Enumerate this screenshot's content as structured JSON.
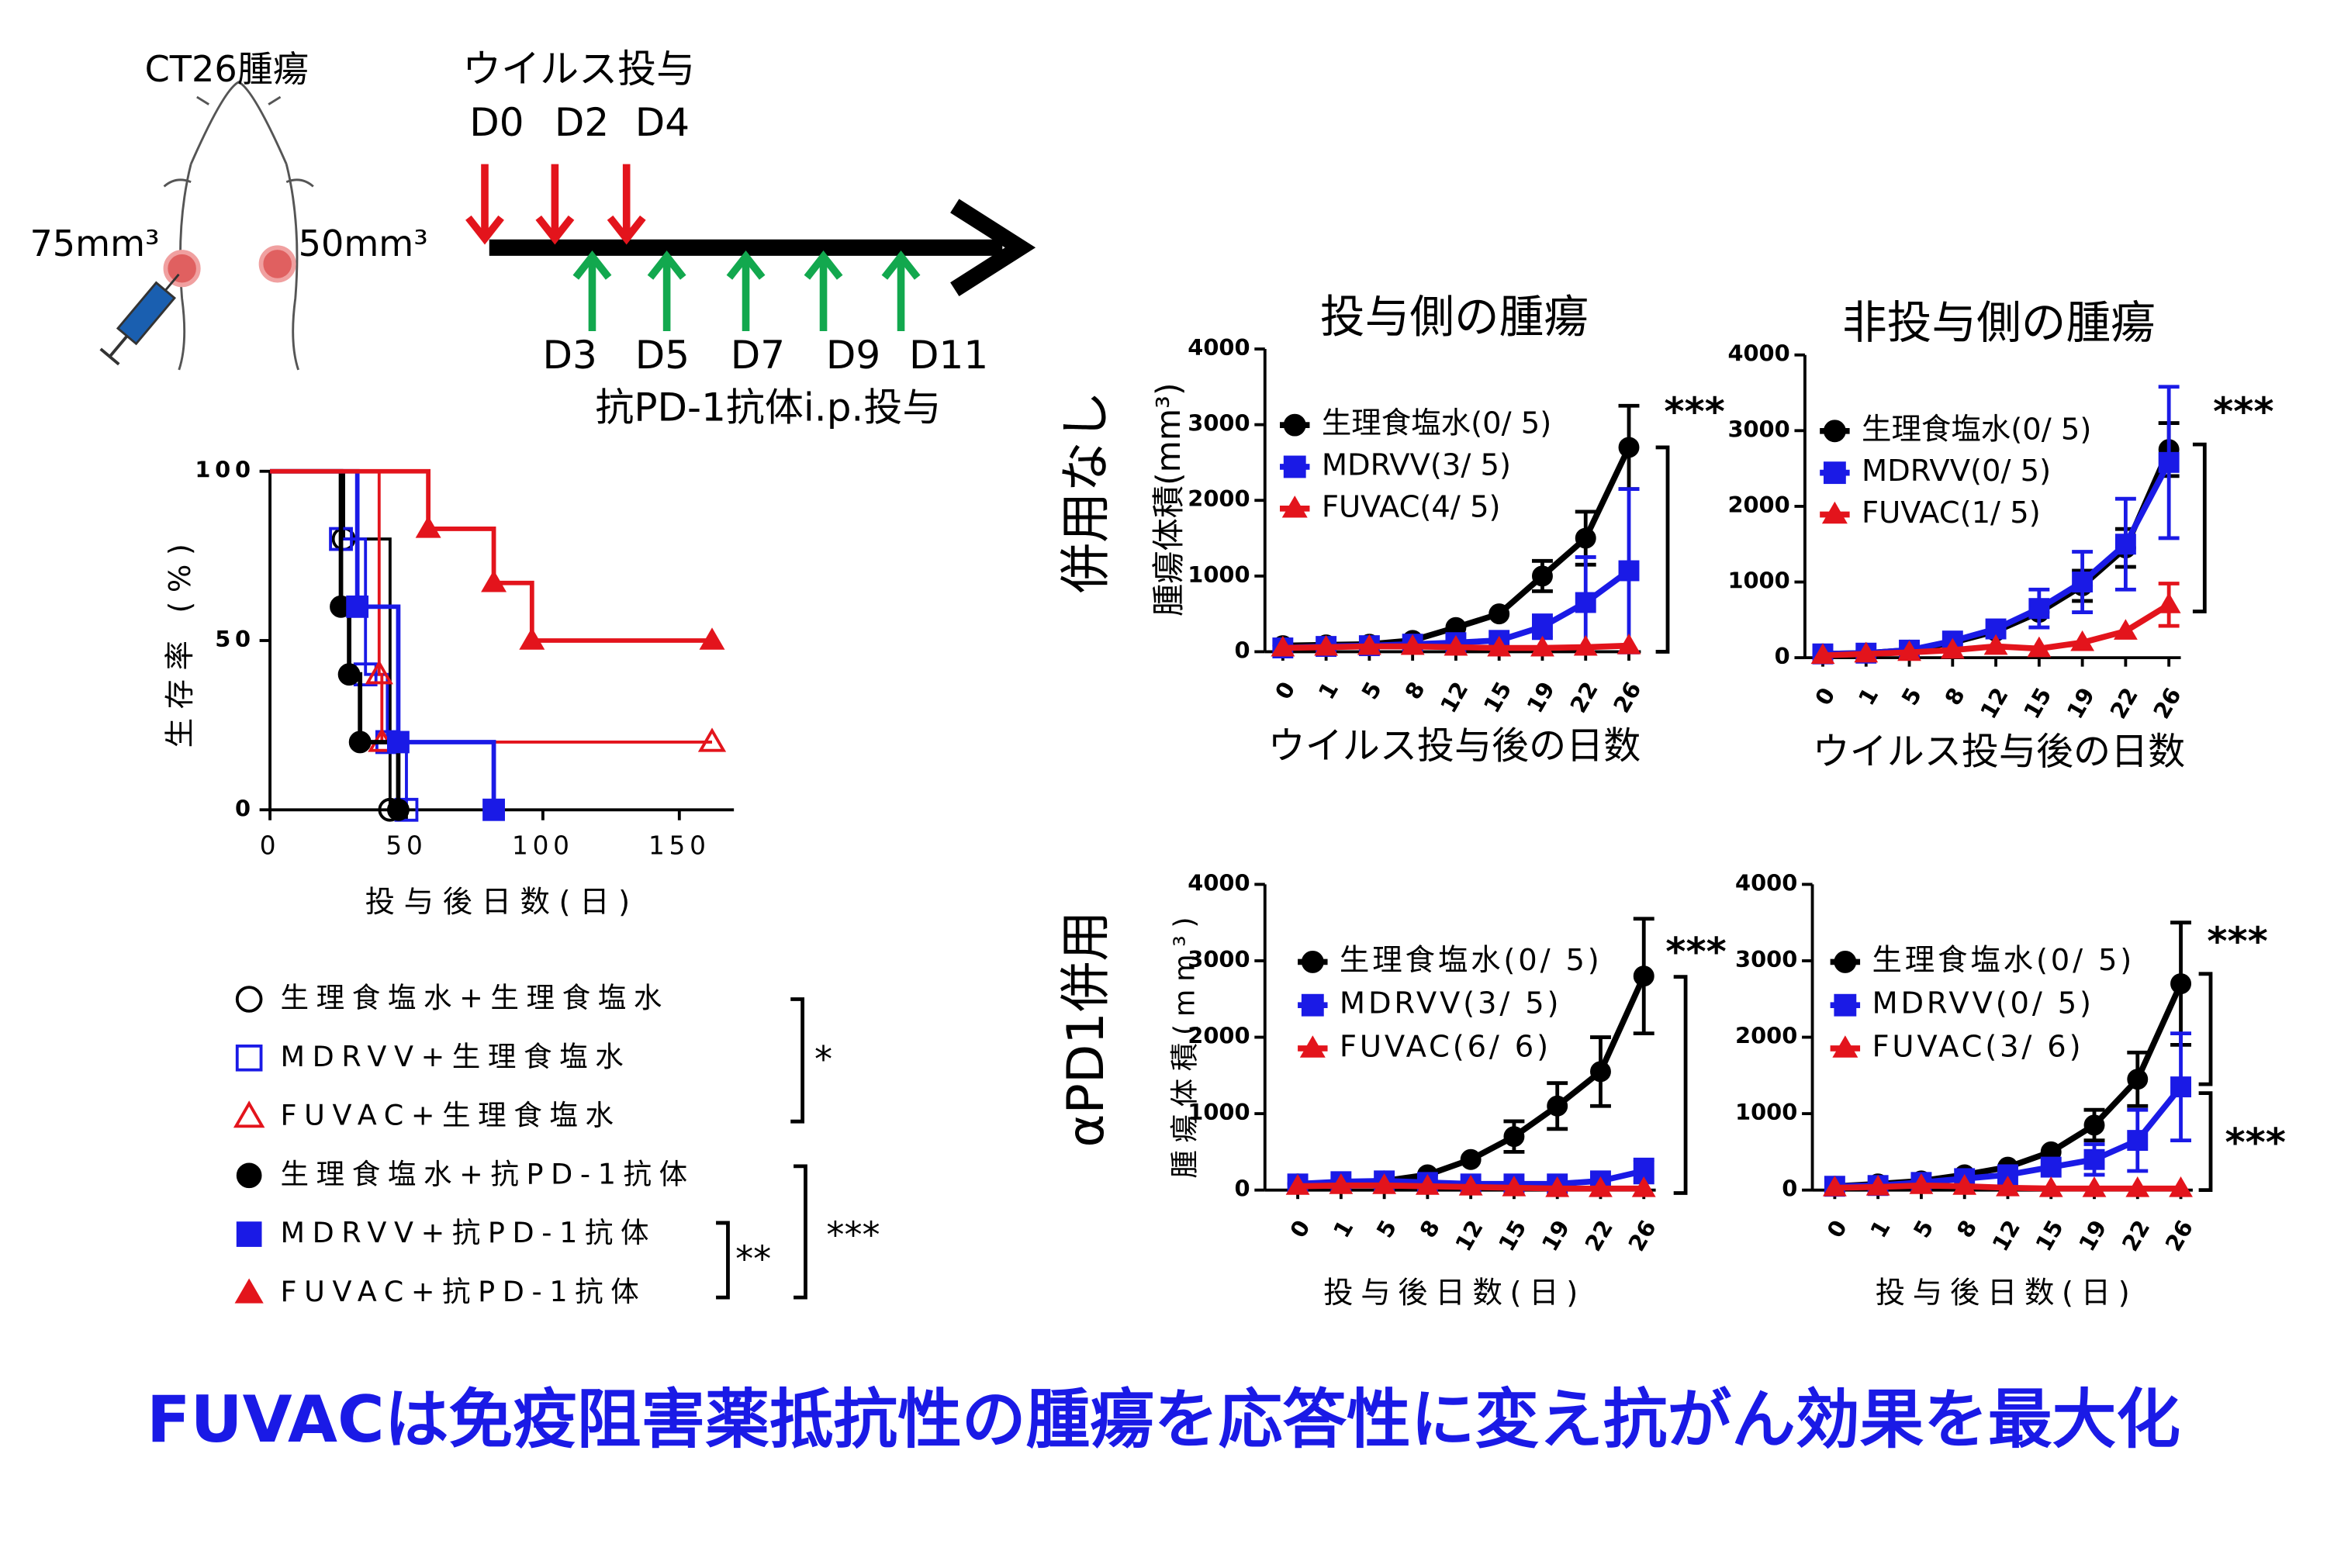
{
  "schematic": {
    "tumor_label": "CT26腫瘍",
    "left_volume": "75mm³",
    "right_volume": "50mm³",
    "virus_title": "ウイルス投与",
    "virus_days": [
      "D0",
      "D2",
      "D4"
    ],
    "antibody_days": [
      "D3",
      "D5",
      "D7",
      "D9",
      "D11"
    ],
    "antibody_label": "抗PD-1抗体i.p.投与"
  },
  "row_labels": [
    "併用なし",
    "αPD1併用"
  ],
  "chart_data": [
    {
      "type": "line",
      "step": true,
      "x_label": "投与後日数(日)",
      "y_label": "生存率 (%)",
      "xlim": [
        0,
        170
      ],
      "xticks": [
        0,
        50,
        100,
        150
      ],
      "ylim": [
        0,
        100
      ],
      "yticks": [
        0,
        50,
        100
      ],
      "series": [
        {
          "name": "生理食塩水+生理食塩水",
          "color": "#000000",
          "marker": "circle",
          "filled": false,
          "x": [
            0,
            27,
            44
          ],
          "values": [
            100,
            80,
            0
          ]
        },
        {
          "name": "MDRVV+生理食塩水",
          "color": "#1a1ae6",
          "marker": "square",
          "filled": false,
          "x": [
            0,
            26,
            35,
            43,
            50
          ],
          "values": [
            100,
            80,
            40,
            20,
            0
          ]
        },
        {
          "name": "FUVAC+生理食塩水",
          "color": "#e3141c",
          "marker": "triangle",
          "filled": false,
          "x": [
            0,
            40,
            41,
            162
          ],
          "values": [
            100,
            40,
            20,
            20
          ]
        },
        {
          "name": "生理食塩水+抗PD-1抗体",
          "color": "#000000",
          "marker": "circle",
          "filled": true,
          "x": [
            0,
            26,
            29,
            33,
            47
          ],
          "values": [
            100,
            60,
            40,
            20,
            0
          ]
        },
        {
          "name": "MDRVV+抗PD-1抗体",
          "color": "#1a1ae6",
          "marker": "square",
          "filled": true,
          "x": [
            0,
            32,
            47,
            82
          ],
          "values": [
            100,
            60,
            20,
            0
          ]
        },
        {
          "name": "FUVAC+抗PD-1抗体",
          "color": "#e3141c",
          "marker": "triangle",
          "filled": true,
          "x": [
            0,
            58,
            82,
            96,
            162
          ],
          "values": [
            100,
            83,
            67,
            50,
            50
          ]
        }
      ],
      "annotations": [
        "*",
        "***",
        "**"
      ]
    },
    {
      "type": "line",
      "title": "投与側の腫瘍",
      "x_label": "ウイルス投与後の日数",
      "y_label": "腫瘍体積(mm³)",
      "categories": [
        "0",
        "1",
        "5",
        "8",
        "12",
        "15",
        "19",
        "22",
        "26"
      ],
      "ylim": [
        0,
        4000
      ],
      "yticks": [
        0,
        1000,
        2000,
        3000,
        4000
      ],
      "series": [
        {
          "name": "生理食塩水(0/ 5)",
          "color": "#000000",
          "marker": "circle",
          "values": [
            80,
            90,
            100,
            150,
            320,
            500,
            1000,
            1500,
            2700
          ],
          "errors": [
            null,
            null,
            null,
            null,
            null,
            null,
            200,
            350,
            550
          ]
        },
        {
          "name": "MDRVV(3/ 5)",
          "color": "#1a1ae6",
          "marker": "square",
          "values": [
            50,
            70,
            80,
            100,
            120,
            150,
            330,
            650,
            1070
          ],
          "errors": [
            null,
            null,
            null,
            null,
            null,
            null,
            150,
            600,
            1080
          ]
        },
        {
          "name": "FUVAC(4/ 5)",
          "color": "#e3141c",
          "marker": "triangle",
          "values": [
            50,
            60,
            70,
            70,
            60,
            50,
            50,
            60,
            80
          ],
          "errors": [
            null,
            null,
            null,
            null,
            null,
            null,
            null,
            null,
            null
          ]
        }
      ],
      "annotations": [
        "***"
      ]
    },
    {
      "type": "line",
      "title": "非投与側の腫瘍",
      "x_label": "ウイルス投与後の日数",
      "categories": [
        "0",
        "1",
        "5",
        "8",
        "12",
        "15",
        "19",
        "22",
        "26"
      ],
      "ylim": [
        0,
        4000
      ],
      "yticks": [
        0,
        1000,
        2000,
        3000,
        4000
      ],
      "series": [
        {
          "name": "生理食塩水(0/ 5)",
          "color": "#000000",
          "marker": "circle",
          "values": [
            50,
            60,
            100,
            200,
            350,
            600,
            950,
            1450,
            2750
          ],
          "errors": [
            null,
            null,
            null,
            null,
            null,
            null,
            200,
            250,
            350
          ]
        },
        {
          "name": "MDRVV(0/ 5)",
          "color": "#1a1ae6",
          "marker": "square",
          "values": [
            50,
            60,
            100,
            220,
            380,
            650,
            1000,
            1500,
            2580
          ],
          "errors": [
            null,
            null,
            null,
            null,
            null,
            250,
            400,
            600,
            1000
          ]
        },
        {
          "name": "FUVAC(1/ 5)",
          "color": "#e3141c",
          "marker": "triangle",
          "values": [
            30,
            50,
            70,
            100,
            150,
            120,
            200,
            350,
            700
          ],
          "errors": [
            null,
            null,
            null,
            null,
            null,
            null,
            null,
            null,
            280
          ]
        }
      ],
      "annotations": [
        "***"
      ]
    },
    {
      "type": "line",
      "x_label": "投与後日数(日)",
      "y_label": "腫瘍体積(mm³)",
      "categories": [
        "0",
        "1",
        "5",
        "8",
        "12",
        "15",
        "19",
        "22",
        "26"
      ],
      "ylim": [
        0,
        4000
      ],
      "yticks": [
        0,
        1000,
        2000,
        3000,
        4000
      ],
      "series": [
        {
          "name": "生理食塩水(0/ 5)",
          "color": "#000000",
          "marker": "circle",
          "values": [
            80,
            100,
            120,
            200,
            400,
            700,
            1100,
            1550,
            2800
          ],
          "errors": [
            null,
            null,
            null,
            null,
            null,
            200,
            300,
            450,
            750
          ]
        },
        {
          "name": "MDRVV(3/ 5)",
          "color": "#1a1ae6",
          "marker": "square",
          "values": [
            80,
            110,
            120,
            100,
            80,
            80,
            80,
            120,
            250
          ],
          "errors": [
            null,
            null,
            null,
            null,
            null,
            null,
            null,
            null,
            150
          ]
        },
        {
          "name": "FUVAC(6/ 6)",
          "color": "#e3141c",
          "marker": "triangle",
          "values": [
            50,
            60,
            60,
            50,
            40,
            30,
            20,
            20,
            20
          ],
          "errors": [
            null,
            null,
            null,
            null,
            null,
            null,
            null,
            null,
            null
          ]
        }
      ],
      "annotations": [
        "***"
      ]
    },
    {
      "type": "line",
      "x_label": "投与後日数(日)",
      "categories": [
        "0",
        "1",
        "5",
        "8",
        "12",
        "15",
        "19",
        "22",
        "26"
      ],
      "ylim": [
        0,
        4000
      ],
      "yticks": [
        0,
        1000,
        2000,
        3000,
        4000
      ],
      "series": [
        {
          "name": "生理食塩水(0/ 5)",
          "color": "#000000",
          "marker": "circle",
          "values": [
            50,
            80,
            120,
            200,
            300,
            500,
            850,
            1450,
            2700
          ],
          "errors": [
            null,
            null,
            null,
            null,
            null,
            null,
            200,
            350,
            800
          ]
        },
        {
          "name": "MDRVV(0/ 5)",
          "color": "#1a1ae6",
          "marker": "square",
          "values": [
            50,
            60,
            100,
            150,
            200,
            300,
            400,
            650,
            1350
          ],
          "errors": [
            null,
            null,
            null,
            null,
            null,
            null,
            200,
            400,
            700
          ]
        },
        {
          "name": "FUVAC(3/ 6)",
          "color": "#e3141c",
          "marker": "triangle",
          "values": [
            30,
            40,
            60,
            50,
            30,
            20,
            20,
            20,
            20
          ],
          "errors": [
            null,
            null,
            null,
            null,
            null,
            null,
            null,
            null,
            null
          ]
        }
      ],
      "annotations": [
        "***",
        "***"
      ]
    }
  ],
  "caption": "FUVACは免疫阻害薬抵抗性の腫瘍を応答性に変え抗がん効果を最大化"
}
